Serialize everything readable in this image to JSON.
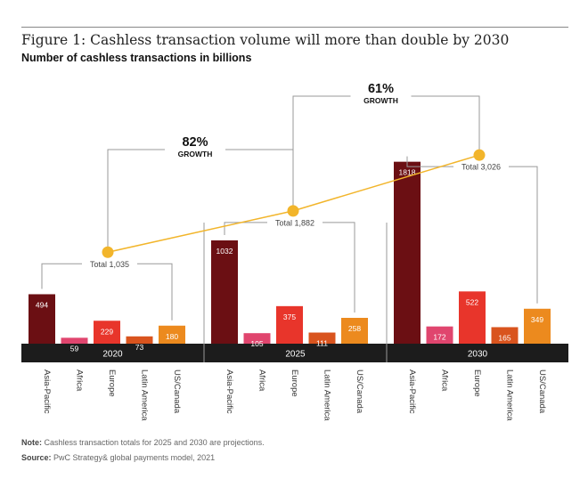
{
  "title": "Figure 1: Cashless transaction volume will more than double by 2030",
  "subtitle": "Number of cashless transactions in billions",
  "note_label": "Note:",
  "note_text": "Cashless transaction totals for 2025 and 2030 are projections.",
  "source_label": "Source:",
  "source_text": "PwC Strategy& global payments model, 2021",
  "colors": {
    "Asia-Pacific": "#6b0f13",
    "Africa": "#e0456e",
    "Europe": "#e8352b",
    "Latin America": "#d9541e",
    "US/Canada": "#ec8a1e",
    "trend": "#f2b52b",
    "axis_band": "#1c1c1c"
  },
  "chart_data": {
    "type": "bar",
    "categories": [
      "Asia-Pacific",
      "Africa",
      "Europe",
      "Latin America",
      "US/Canada"
    ],
    "groups": [
      "2020",
      "2025",
      "2030"
    ],
    "series": [
      {
        "values": [
          494,
          59,
          229,
          73,
          180
        ]
      },
      {
        "values": [
          1032,
          105,
          375,
          111,
          258
        ]
      },
      {
        "values": [
          1818,
          172,
          522,
          165,
          349
        ]
      }
    ],
    "totals": [
      1035,
      1882,
      3026
    ],
    "total_labels": [
      "Total 1,035",
      "Total 1,882",
      "Total 3,026"
    ],
    "growth": [
      {
        "pct": "82%",
        "label": "GROWTH"
      },
      {
        "pct": "61%",
        "label": "GROWTH"
      }
    ]
  }
}
